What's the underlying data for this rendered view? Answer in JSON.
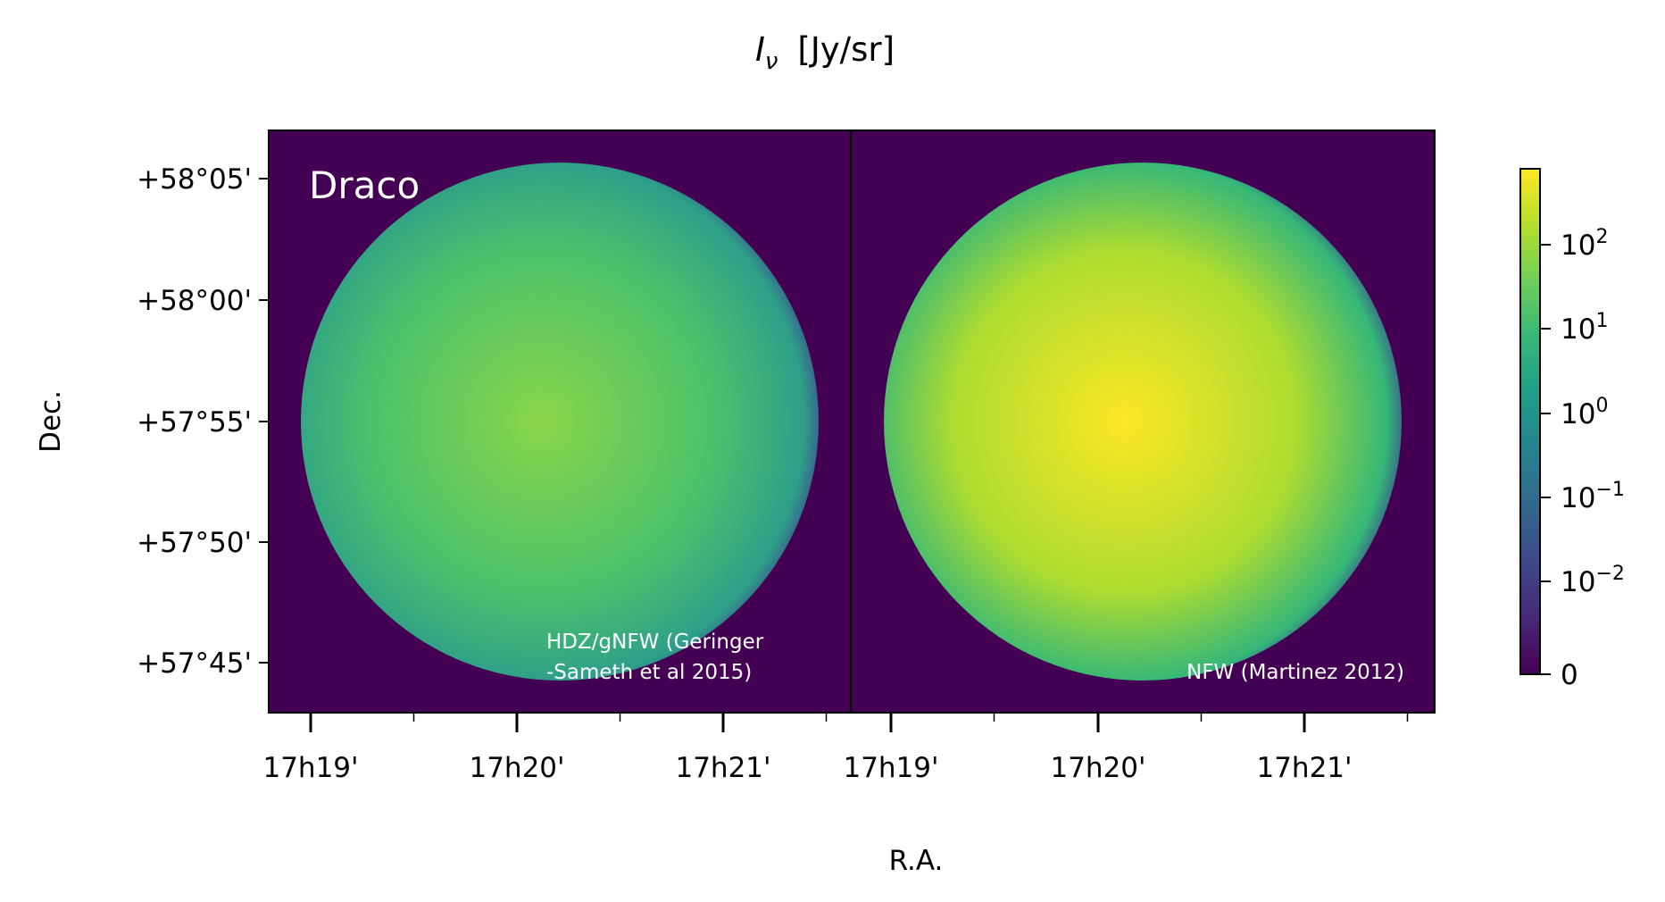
{
  "chart_data": {
    "type": "heatmap",
    "title": "I_ν  [Jy/sr]",
    "title_parts": {
      "symbol": "I",
      "subscript": "ν",
      "unit": "[Jy/sr]"
    },
    "xlabel": "R.A.",
    "ylabel": "Dec.",
    "x_ticks": [
      "17h19'",
      "17h20'",
      "17h21'"
    ],
    "y_ticks": [
      "+58°05'",
      "+58°00'",
      "+57°55'",
      "+57°50'",
      "+57°45'"
    ],
    "colormap": "viridis",
    "colorbar": {
      "scale": "symlog",
      "ticks": [
        {
          "base": "10",
          "exp": "2"
        },
        {
          "base": "10",
          "exp": "1"
        },
        {
          "base": "10",
          "exp": "0"
        },
        {
          "base": "10",
          "exp": "−1"
        },
        {
          "base": "10",
          "exp": "−2"
        },
        {
          "base": "0",
          "exp": ""
        }
      ]
    },
    "panels": [
      {
        "annotation": "Draco",
        "model_label": [
          "HDZ/gNFW (Geringer",
          "-Sameth et al 2015)"
        ],
        "center_color": "#8ad548",
        "mid_color": "#4cc26c",
        "edge_color": "#2e9f89"
      },
      {
        "annotation": "",
        "model_label": [
          "NFW (Martinez 2012)"
        ],
        "center_color": "#fde725",
        "mid_color": "#addc30",
        "edge_color": "#35b779"
      }
    ],
    "background_color": "#440154"
  }
}
